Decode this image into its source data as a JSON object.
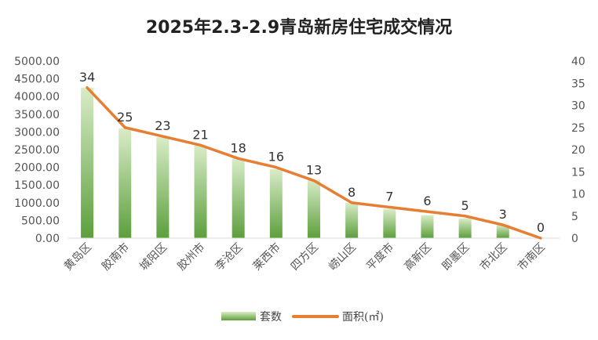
{
  "chart_data": {
    "type": "bar",
    "title": "2025年2.3-2.9青岛新房住宅成交情况",
    "categories": [
      "黄岛区",
      "胶南市",
      "城阳区",
      "胶州市",
      "李沧区",
      "莱西市",
      "四方区",
      "崂山区",
      "平度市",
      "高新区",
      "即墨区",
      "市北区",
      "市南区"
    ],
    "series": [
      {
        "name": "套数",
        "type": "bar",
        "axis": "left",
        "values": [
          4250,
          3100,
          2850,
          2620,
          2250,
          1950,
          1650,
          1000,
          820,
          650,
          560,
          380,
          0
        ]
      },
      {
        "name": "面积(㎡)",
        "type": "line",
        "axis": "right",
        "values": [
          34,
          25,
          23,
          21,
          18,
          16,
          13,
          8,
          7,
          6,
          5,
          3,
          0
        ],
        "data_labels": [
          "34",
          "25",
          "23",
          "21",
          "18",
          "16",
          "13",
          "8",
          "7",
          "6",
          "5",
          "3",
          "0"
        ]
      }
    ],
    "y_left": {
      "range": [
        0,
        5000
      ],
      "ticks": [
        "0.00",
        "500.00",
        "1000.00",
        "1500.00",
        "2000.00",
        "2500.00",
        "3000.00",
        "3500.00",
        "4000.00",
        "4500.00",
        "5000.00"
      ]
    },
    "y_right": {
      "range": [
        0,
        40
      ],
      "ticks": [
        "0",
        "5",
        "10",
        "15",
        "20",
        "25",
        "30",
        "35",
        "40"
      ]
    },
    "grid": false,
    "legend": "bottom",
    "colors": {
      "bar_top": "#d9ecc8",
      "bar_bottom": "#5c9f3c",
      "line": "#e67e33",
      "axis": "#d9d9d9",
      "text": "#555555"
    }
  }
}
